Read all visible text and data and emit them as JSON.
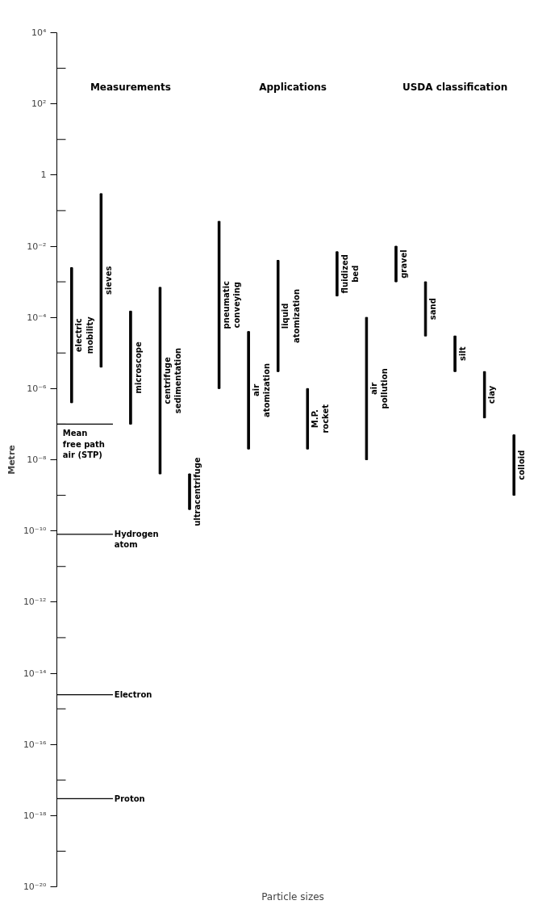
{
  "chart_data": {
    "type": "bar",
    "xlabel": "Particle sizes",
    "ylabel": "Metre",
    "categories": [
      "electric\nmobility",
      "sieves",
      "microscope",
      "centrifuge\nsedimentation",
      "ultracentrifuge",
      "pneumatic\nconveying",
      "air\natomization",
      "liquid\natomization",
      "M.P.\nrocket",
      "fluidized\nbed",
      "air\npollution",
      "gravel",
      "sand",
      "silt",
      "clay",
      "colloid"
    ],
    "base": [
      4e-07,
      4e-06,
      1e-07,
      4e-09,
      4e-10,
      1e-06,
      2e-08,
      3e-06,
      2e-08,
      0.0004,
      1e-08,
      0.001,
      3e-05,
      3e-06,
      1.5e-07,
      1e-09
    ],
    "values": [
      0.0025,
      0.3,
      0.00015,
      0.0007,
      3.6e-09,
      0.05,
      4e-05,
      0.004,
      9.8e-07,
      0.0066,
      0.0001,
      0.009,
      0.00097,
      2.7e-05,
      2.85e-06,
      4.9e-08
    ],
    "color": "#000000",
    "log": true,
    "ylim": [
      1e-20,
      10000.0
    ],
    "yticks": [
      {
        "value": 10000.0,
        "label": "10⁴"
      },
      {
        "value": 1000.0,
        "label": null
      },
      {
        "value": 100.0,
        "label": "10²"
      },
      {
        "value": 10.0,
        "label": null
      },
      {
        "value": 1,
        "label": "1"
      },
      {
        "value": 0.1,
        "label": null
      },
      {
        "value": 0.01,
        "label": "10⁻²"
      },
      {
        "value": 0.001,
        "label": null
      },
      {
        "value": 0.0001,
        "label": "10⁻⁴"
      },
      {
        "value": 1e-05,
        "label": null
      },
      {
        "value": 1e-06,
        "label": "10⁻⁶"
      },
      {
        "value": 1e-07,
        "label": null
      },
      {
        "value": 1e-08,
        "label": "10⁻⁸"
      },
      {
        "value": 1e-09,
        "label": null
      },
      {
        "value": 1e-10,
        "label": "10⁻¹⁰"
      },
      {
        "value": 1e-11,
        "label": null
      },
      {
        "value": 1e-12,
        "label": "10⁻¹²"
      },
      {
        "value": 1e-13,
        "label": null
      },
      {
        "value": 1e-14,
        "label": "10⁻¹⁴"
      },
      {
        "value": 1e-15,
        "label": null
      },
      {
        "value": 1e-16,
        "label": "10⁻¹⁶"
      },
      {
        "value": 1e-17,
        "label": null
      },
      {
        "value": 1e-18,
        "label": "10⁻¹⁸"
      },
      {
        "value": 1e-19,
        "label": null
      },
      {
        "value": 1e-20,
        "label": "10⁻²⁰"
      }
    ],
    "ref_lines": [
      {
        "axis": "y",
        "value": 1e-07,
        "label": "Mean\nfree path\nair (STP)"
      },
      {
        "axis": "y",
        "value": 8e-11,
        "label": "Hydrogen\natom"
      },
      {
        "axis": "y",
        "value": 2.5e-15,
        "label": "Electron"
      },
      {
        "axis": "y",
        "value": 3e-18,
        "label": "Proton"
      }
    ],
    "annotations": [
      "Measurements",
      "Applications",
      "USDA classification"
    ]
  }
}
